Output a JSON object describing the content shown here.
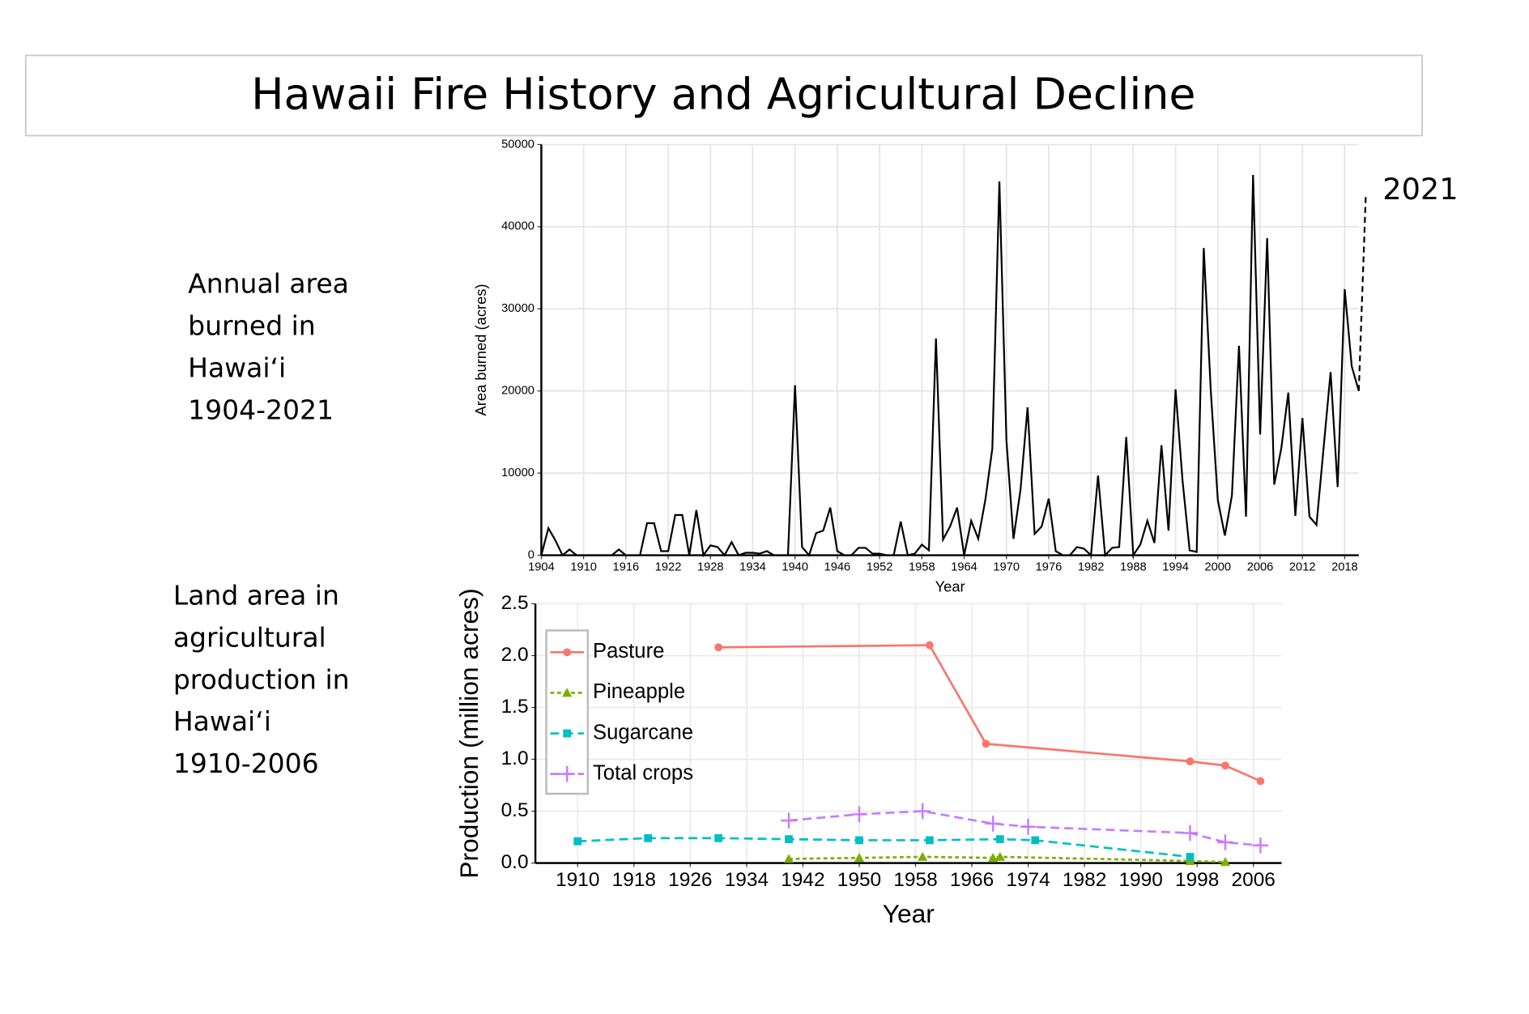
{
  "slide": {
    "title": "Hawaii Fire History and Agricultural Decline",
    "captions": [
      [
        "Annual area",
        "burned in",
        "Hawaiʻi",
        "1904-2021"
      ],
      [
        "Land area in",
        "agricultural",
        "production in",
        "Hawaiʻi",
        "1910-2006"
      ]
    ]
  },
  "chart_data": [
    {
      "type": "line",
      "xlabel": "Year",
      "ylabel": "Area burned (acres)",
      "annotation": "2021",
      "color": "#000000",
      "dash_last_segment": true,
      "grid": true,
      "x": [
        1904,
        1905,
        1906,
        1907,
        1908,
        1909,
        1910,
        1911,
        1912,
        1913,
        1914,
        1915,
        1916,
        1917,
        1918,
        1919,
        1920,
        1921,
        1922,
        1923,
        1924,
        1925,
        1926,
        1927,
        1928,
        1929,
        1930,
        1931,
        1932,
        1933,
        1934,
        1935,
        1936,
        1937,
        1938,
        1939,
        1940,
        1941,
        1942,
        1943,
        1944,
        1945,
        1946,
        1947,
        1948,
        1949,
        1950,
        1951,
        1952,
        1953,
        1954,
        1955,
        1956,
        1957,
        1958,
        1959,
        1960,
        1961,
        1962,
        1963,
        1964,
        1965,
        1966,
        1967,
        1968,
        1969,
        1970,
        1971,
        1972,
        1973,
        1974,
        1975,
        1976,
        1977,
        1978,
        1979,
        1980,
        1981,
        1982,
        1983,
        1984,
        1985,
        1986,
        1987,
        1988,
        1989,
        1990,
        1991,
        1992,
        1993,
        1994,
        1995,
        1996,
        1997,
        1998,
        1999,
        2000,
        2001,
        2002,
        2003,
        2004,
        2005,
        2006,
        2007,
        2008,
        2009,
        2010,
        2011,
        2012,
        2013,
        2014,
        2015,
        2016,
        2017,
        2018,
        2019,
        2020,
        2021
      ],
      "values": [
        0,
        3300,
        1800,
        0,
        700,
        0,
        0,
        0,
        0,
        0,
        0,
        700,
        0,
        0,
        0,
        3900,
        3900,
        500,
        500,
        4900,
        4900,
        0,
        5500,
        0,
        1200,
        1000,
        0,
        1600,
        0,
        300,
        300,
        200,
        500,
        0,
        0,
        0,
        20700,
        1000,
        0,
        2700,
        3000,
        5800,
        500,
        0,
        0,
        900,
        900,
        200,
        200,
        0,
        0,
        4100,
        0,
        200,
        1300,
        600,
        26400,
        1900,
        3500,
        5800,
        0,
        4200,
        2000,
        6700,
        13000,
        45500,
        14000,
        2000,
        8000,
        18000,
        2600,
        3500,
        6900,
        500,
        0,
        0,
        1000,
        800,
        0,
        9700,
        0,
        900,
        1000,
        14400,
        0,
        1300,
        4200,
        1500,
        13400,
        3000,
        20200,
        9000,
        600,
        400,
        37400,
        20000,
        6700,
        2400,
        7300,
        25500,
        4700,
        46300,
        14700,
        38600,
        8600,
        13000,
        19800,
        4800,
        16700,
        4700,
        3700,
        13000,
        22300,
        8300,
        32400,
        23000,
        20000,
        44000
      ],
      "xlim": [
        1904,
        2020
      ],
      "ylim": [
        0,
        50000
      ],
      "xticks": [
        1904,
        1910,
        1916,
        1922,
        1928,
        1934,
        1940,
        1946,
        1952,
        1958,
        1964,
        1970,
        1976,
        1982,
        1988,
        1994,
        2000,
        2006,
        2012,
        2018
      ],
      "yticks": [
        0,
        10000,
        20000,
        30000,
        40000,
        50000
      ]
    },
    {
      "type": "line",
      "xlabel": "Year",
      "ylabel": "Production (million acres)",
      "grid": true,
      "legend": "upper left",
      "xlim": [
        1904,
        2010
      ],
      "ylim": [
        0,
        2.5
      ],
      "xticks": [
        1910,
        1918,
        1926,
        1934,
        1942,
        1950,
        1958,
        1966,
        1974,
        1982,
        1990,
        1998,
        2006
      ],
      "yticks": [
        {
          "value": 0,
          "label": "0.0"
        },
        0.5,
        {
          "value": 1,
          "label": "1.0"
        },
        1.5,
        {
          "value": 2,
          "label": "2.0"
        },
        2.5
      ],
      "series": [
        {
          "name": "Pasture",
          "color": "#f8766d",
          "marker": "circle",
          "dash": "solid",
          "x": [
            1930,
            1960,
            1968,
            1997,
            2002,
            2007
          ],
          "values": [
            2.08,
            2.1,
            1.15,
            0.98,
            0.94,
            0.79
          ]
        },
        {
          "name": "Pineapple",
          "color": "#7cae00",
          "marker": "triangle",
          "dash": "dotted",
          "x": [
            1940,
            1950,
            1959,
            1969,
            1970,
            1997,
            2002
          ],
          "values": [
            0.04,
            0.05,
            0.06,
            0.05,
            0.06,
            0.02,
            0.01
          ]
        },
        {
          "name": "Sugarcane",
          "color": "#00bfc4",
          "marker": "square",
          "dash": "dashed",
          "x": [
            1910,
            1920,
            1930,
            1940,
            1950,
            1960,
            1970,
            1975,
            1997
          ],
          "values": [
            0.21,
            0.24,
            0.24,
            0.23,
            0.22,
            0.22,
            0.23,
            0.22,
            0.06
          ]
        },
        {
          "name": "Total crops",
          "color": "#c77cff",
          "marker": "plus",
          "dash": "dashed",
          "x": [
            1940,
            1950,
            1959,
            1969,
            1974,
            1997,
            2002,
            2007
          ],
          "values": [
            0.41,
            0.47,
            0.5,
            0.38,
            0.35,
            0.29,
            0.2,
            0.17
          ]
        }
      ]
    }
  ]
}
